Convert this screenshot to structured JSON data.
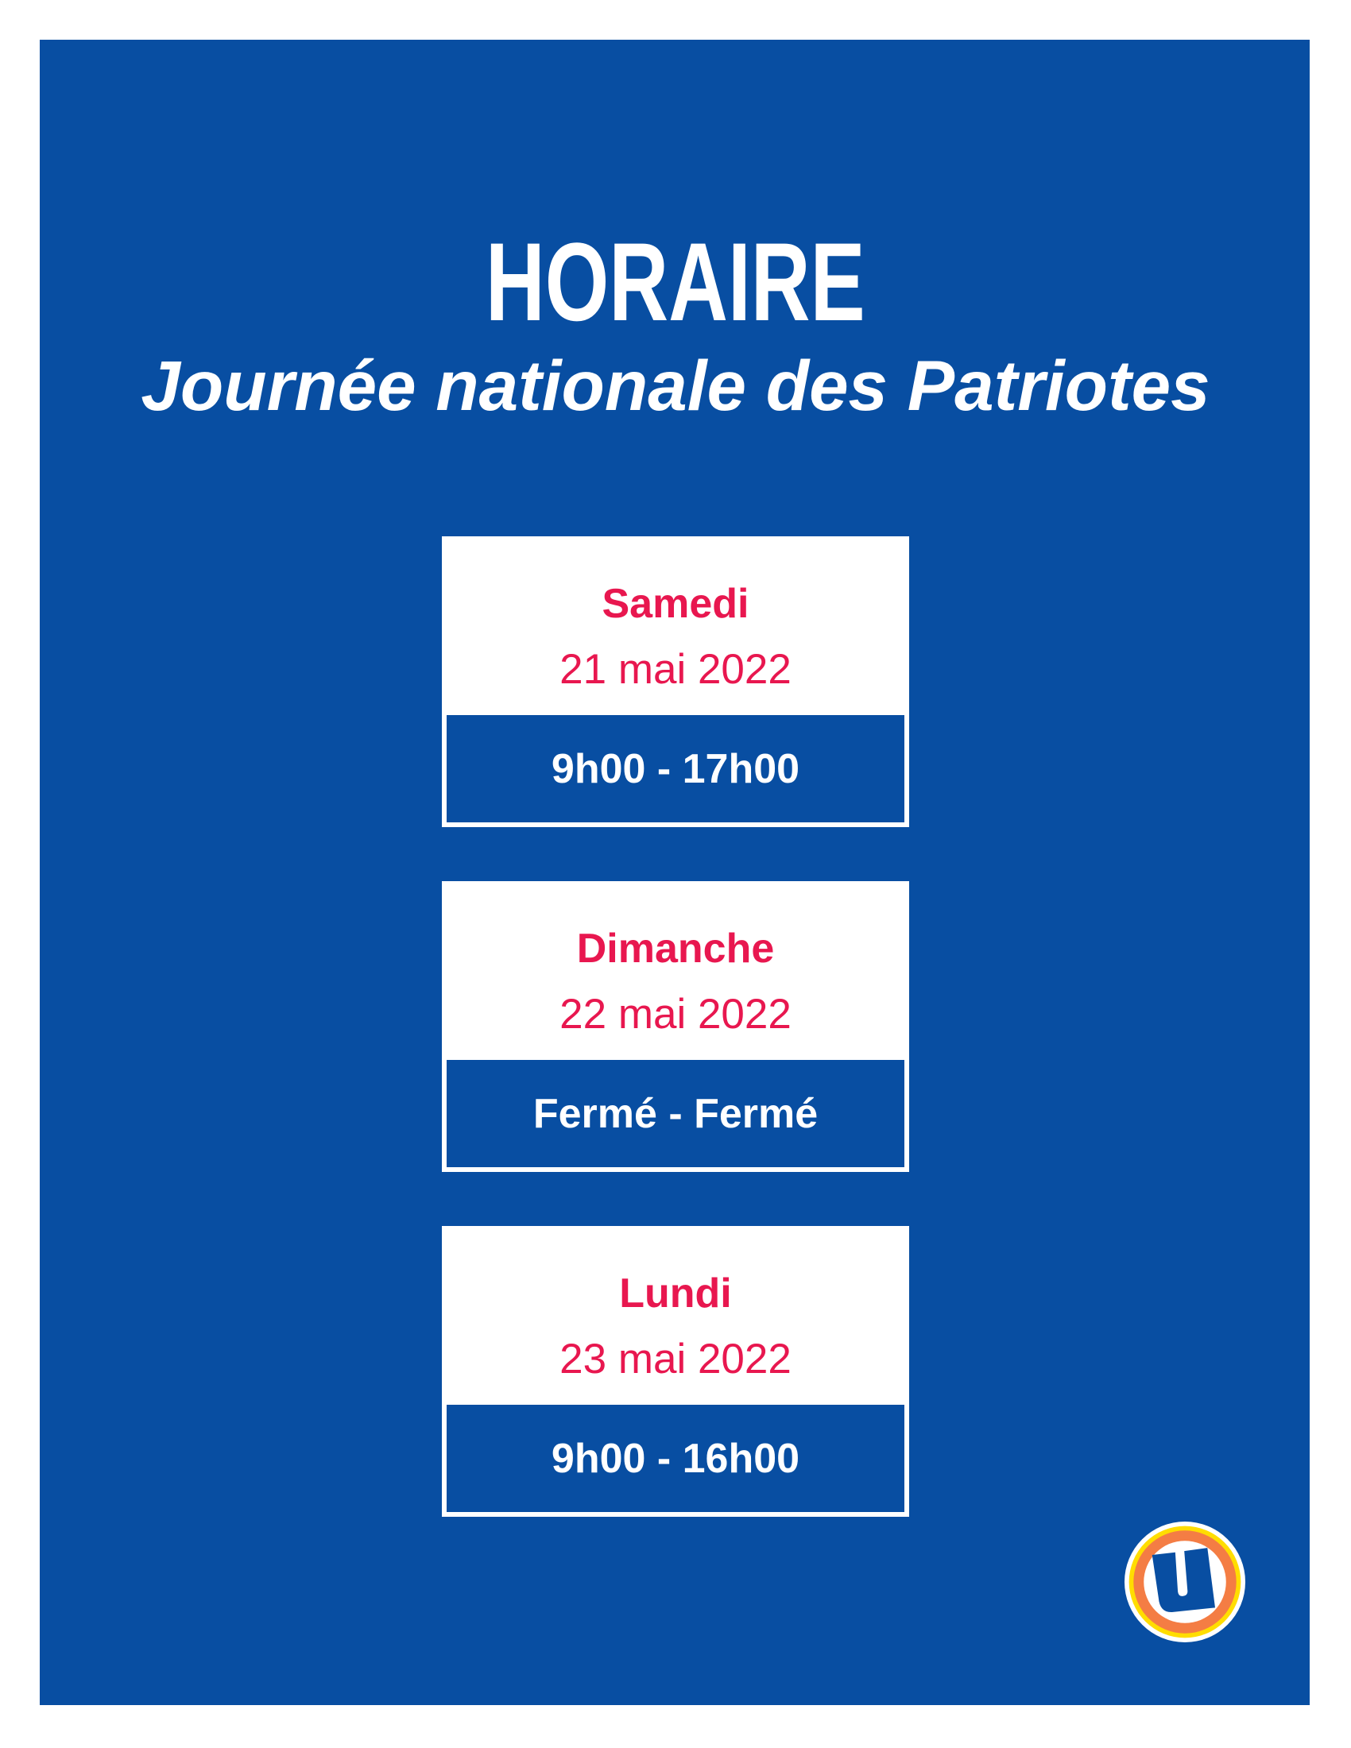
{
  "header": {
    "title": "HORAIRE",
    "subtitle": "Journée nationale des Patriotes"
  },
  "schedule": [
    {
      "day": "Samedi",
      "date": "21 mai 2022",
      "hours": "9h00 - 17h00"
    },
    {
      "day": "Dimanche",
      "date": "22 mai 2022",
      "hours": "Fermé - Fermé"
    },
    {
      "day": "Lundi",
      "date": "23 mai 2022",
      "hours": "9h00 - 16h00"
    }
  ],
  "logo": {
    "icon": "u-brand-logo",
    "letter": "U"
  },
  "colors": {
    "background": "#084ea2",
    "accent": "#e8174f",
    "logo_orange": "#f47d44",
    "logo_yellow": "#ffdd00"
  }
}
